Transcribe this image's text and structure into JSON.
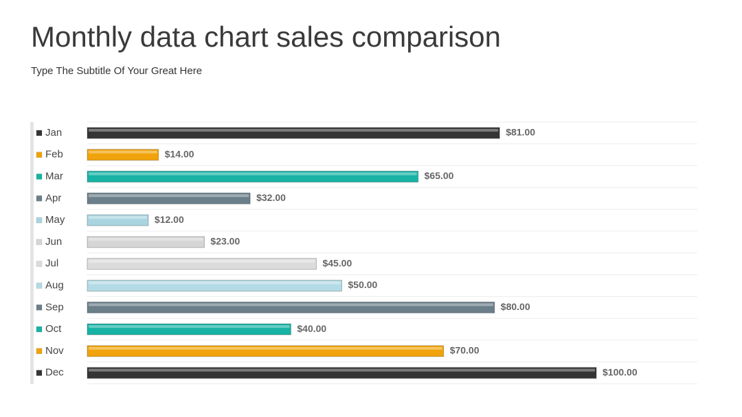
{
  "chart_data": {
    "type": "bar",
    "orientation": "horizontal",
    "title": "Monthly data chart sales comparison",
    "subtitle": "Type The Subtitle Of Your Great Here",
    "categories": [
      "Jan",
      "Feb",
      "Mar",
      "Apr",
      "May",
      "Jun",
      "Jul",
      "Aug",
      "Sep",
      "Oct",
      "Nov",
      "Dec"
    ],
    "values": [
      81,
      14,
      65,
      32,
      12,
      23,
      45,
      50,
      80,
      40,
      70,
      100
    ],
    "value_labels": [
      "$81.00",
      "$14.00",
      "$65.00",
      "$32.00",
      "$12.00",
      "$23.00",
      "$45.00",
      "$50.00",
      "$80.00",
      "$40.00",
      "$70.00",
      "$100.00"
    ],
    "colors": [
      "#353535",
      "#f0a30a",
      "#17b3a5",
      "#6b7f8b",
      "#a9d4e0",
      "#d6d6d6",
      "#dcdcdc",
      "#b2dbe6",
      "#6b7f8b",
      "#17b3a5",
      "#f0a30a",
      "#353535"
    ],
    "xlim": [
      0,
      100
    ]
  }
}
